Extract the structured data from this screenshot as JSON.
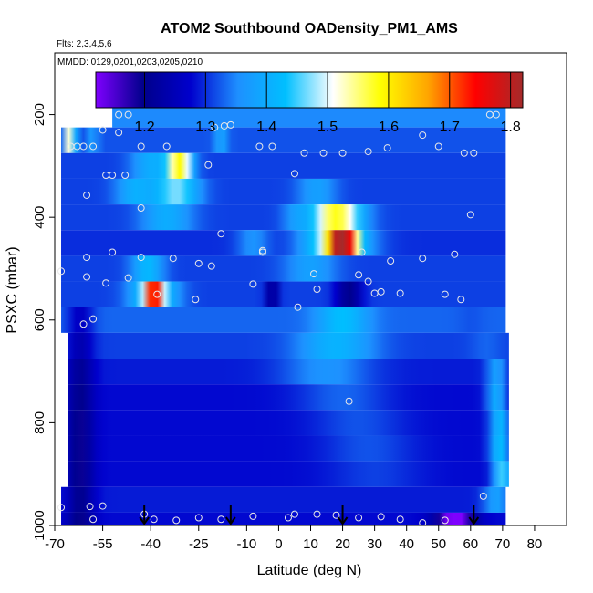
{
  "chart_data": {
    "type": "heatmap",
    "title": "ATOM2 Southbound OADensity_PM1_AMS",
    "flights_label": "Flts: 2,3,4,5,6",
    "dates_label": "MMDD: 0129,0201,0203,0205,0210",
    "xlabel": "Latitude (deg N)",
    "ylabel": "PSXC (mbar)",
    "xlim": [
      -70,
      90
    ],
    "ylim": [
      1000,
      80
    ],
    "y_reversed": true,
    "xticks": [
      -70,
      -55,
      -40,
      -25,
      -10,
      0,
      10,
      20,
      30,
      40,
      50,
      60,
      70,
      80
    ],
    "xticklabels": [
      "-70",
      "-55",
      "-40",
      "-25",
      "-10",
      "0",
      "10",
      "20",
      "30",
      "40",
      "50",
      "60",
      "70",
      "80"
    ],
    "yticks": [
      200,
      400,
      600,
      800,
      1000
    ],
    "yticklabels": [
      "200",
      "400",
      "600",
      "800",
      "1000"
    ],
    "colorbar": {
      "range": [
        1.12,
        1.82
      ],
      "ticks": [
        1.2,
        1.3,
        1.4,
        1.5,
        1.6,
        1.7,
        1.8
      ],
      "ticklabels": [
        "1.2",
        "1.3",
        "1.4",
        "1.5",
        "1.6",
        "1.7",
        "1.8"
      ],
      "stops": [
        "#7f00ff",
        "#00008b",
        "#0000cd",
        "#1e90ff",
        "#00bfff",
        "#ffffff",
        "#ffff00",
        "#ffa500",
        "#ff0000",
        "#a52a2a"
      ]
    },
    "bands": [
      {
        "p": [
          175,
          225
        ],
        "x": [
          -52,
          71
        ],
        "base": 1.35,
        "hot": []
      },
      {
        "p": [
          225,
          275
        ],
        "x": [
          -68,
          71
        ],
        "base": 1.32,
        "hot": [
          {
            "lat": -66,
            "w": 1.2,
            "v": 1.53
          },
          {
            "lat": -64,
            "w": 1.0,
            "v": 1.42
          },
          {
            "lat": -58,
            "w": 1.5,
            "v": 1.38
          },
          {
            "lat": -18,
            "w": 2,
            "v": 1.39
          }
        ]
      },
      {
        "p": [
          275,
          325
        ],
        "x": [
          -68,
          71
        ],
        "base": 1.31,
        "hot": [
          {
            "lat": -31,
            "w": 4,
            "v": 1.58
          },
          {
            "lat": -40,
            "w": 6,
            "v": 1.4
          }
        ]
      },
      {
        "p": [
          325,
          375
        ],
        "x": [
          -68,
          71
        ],
        "base": 1.31,
        "hot": [
          {
            "lat": -32,
            "w": 7,
            "v": 1.47
          },
          {
            "lat": -45,
            "w": 6,
            "v": 1.4
          },
          {
            "lat": 12,
            "w": 6,
            "v": 1.38
          }
        ]
      },
      {
        "p": [
          375,
          425
        ],
        "x": [
          -68,
          71
        ],
        "base": 1.31,
        "hot": [
          {
            "lat": 18,
            "w": 8,
            "v": 1.58
          },
          {
            "lat": -35,
            "w": 8,
            "v": 1.4
          },
          {
            "lat": 5,
            "w": 4,
            "v": 1.36
          }
        ]
      },
      {
        "p": [
          425,
          475
        ],
        "x": [
          -68,
          71
        ],
        "base": 1.3,
        "hot": [
          {
            "lat": 20,
            "w": 4,
            "v": 1.69
          },
          {
            "lat": 18,
            "w": 10,
            "v": 1.52
          },
          {
            "lat": -8,
            "w": 5,
            "v": 1.36
          }
        ]
      },
      {
        "p": [
          475,
          525
        ],
        "x": [
          -68,
          71
        ],
        "base": 1.31,
        "hot": [
          {
            "lat": -41,
            "w": 5,
            "v": 1.42
          },
          {
            "lat": 10,
            "w": 8,
            "v": 1.38
          }
        ]
      },
      {
        "p": [
          525,
          575
        ],
        "x": [
          -68,
          71
        ],
        "base": 1.31,
        "hot": [
          {
            "lat": -39,
            "w": 2.5,
            "v": 1.62
          },
          {
            "lat": -39,
            "w": 7,
            "v": 1.48
          },
          {
            "lat": -2,
            "w": 2,
            "v": 1.2
          },
          {
            "lat": 22,
            "w": 4,
            "v": 1.2
          }
        ]
      },
      {
        "p": [
          575,
          625
        ],
        "x": [
          -68,
          71
        ],
        "base": 1.33,
        "hot": [
          {
            "lat": -62,
            "w": 4,
            "v": 1.26
          },
          {
            "lat": 20,
            "w": 8,
            "v": 1.43
          },
          {
            "lat": 60,
            "w": 4,
            "v": 1.32
          }
        ]
      },
      {
        "p": [
          625,
          675
        ],
        "x": [
          -66,
          72
        ],
        "base": 1.31,
        "hot": [
          {
            "lat": -62,
            "w": 4,
            "v": 1.24
          },
          {
            "lat": 18,
            "w": 12,
            "v": 1.41
          },
          {
            "lat": 65,
            "w": 5,
            "v": 1.33
          }
        ]
      },
      {
        "p": [
          675,
          725
        ],
        "x": [
          -66,
          72
        ],
        "base": 1.29,
        "hot": [
          {
            "lat": -62,
            "w": 4,
            "v": 1.21
          },
          {
            "lat": 15,
            "w": 14,
            "v": 1.36
          },
          {
            "lat": 68,
            "w": 3,
            "v": 1.38
          }
        ]
      },
      {
        "p": [
          725,
          775
        ],
        "x": [
          -66,
          72
        ],
        "base": 1.28,
        "hot": [
          {
            "lat": -62,
            "w": 4,
            "v": 1.2
          },
          {
            "lat": 20,
            "w": 14,
            "v": 1.33
          },
          {
            "lat": 68,
            "w": 3,
            "v": 1.4
          }
        ]
      },
      {
        "p": [
          775,
          825
        ],
        "x": [
          -66,
          72
        ],
        "base": 1.28,
        "hot": [
          {
            "lat": -62,
            "w": 4,
            "v": 1.19
          },
          {
            "lat": 25,
            "w": 14,
            "v": 1.32
          },
          {
            "lat": 69,
            "w": 3,
            "v": 1.42
          }
        ]
      },
      {
        "p": [
          825,
          875
        ],
        "x": [
          -66,
          72
        ],
        "base": 1.28,
        "hot": [
          {
            "lat": -62,
            "w": 4,
            "v": 1.19
          },
          {
            "lat": 28,
            "w": 14,
            "v": 1.32
          },
          {
            "lat": 69,
            "w": 3,
            "v": 1.43
          }
        ]
      },
      {
        "p": [
          875,
          925
        ],
        "x": [
          -66,
          72
        ],
        "base": 1.28,
        "hot": [
          {
            "lat": -62,
            "w": 4,
            "v": 1.19
          },
          {
            "lat": 30,
            "w": 14,
            "v": 1.31
          },
          {
            "lat": 70,
            "w": 3,
            "v": 1.45
          }
        ]
      },
      {
        "p": [
          925,
          975
        ],
        "x": [
          -68,
          71
        ],
        "base": 1.29,
        "hot": [
          {
            "lat": -62,
            "w": 4,
            "v": 1.2
          },
          {
            "lat": 68,
            "w": 4,
            "v": 1.38
          }
        ]
      },
      {
        "p": [
          975,
          1000
        ],
        "x": [
          -68,
          71
        ],
        "base": 1.28,
        "hot": [
          {
            "lat": -62,
            "w": 4,
            "v": 1.19
          },
          {
            "lat": 55,
            "w": 6,
            "v": 1.1
          }
        ]
      }
    ],
    "samples": [
      {
        "lat": -50,
        "p": 200
      },
      {
        "lat": -47,
        "p": 200
      },
      {
        "lat": 66,
        "p": 200
      },
      {
        "lat": 68,
        "p": 200
      },
      {
        "lat": -55,
        "p": 230
      },
      {
        "lat": -50,
        "p": 235
      },
      {
        "lat": -20,
        "p": 225
      },
      {
        "lat": -17,
        "p": 222
      },
      {
        "lat": -15,
        "p": 220
      },
      {
        "lat": 45,
        "p": 240
      },
      {
        "lat": -65,
        "p": 262
      },
      {
        "lat": -63,
        "p": 262
      },
      {
        "lat": -61,
        "p": 262
      },
      {
        "lat": -58,
        "p": 262
      },
      {
        "lat": -43,
        "p": 262
      },
      {
        "lat": -35,
        "p": 262
      },
      {
        "lat": -6,
        "p": 262
      },
      {
        "lat": -2,
        "p": 262
      },
      {
        "lat": 8,
        "p": 275
      },
      {
        "lat": 14,
        "p": 275
      },
      {
        "lat": 20,
        "p": 275
      },
      {
        "lat": 28,
        "p": 272
      },
      {
        "lat": 34,
        "p": 265
      },
      {
        "lat": 50,
        "p": 262
      },
      {
        "lat": 58,
        "p": 275
      },
      {
        "lat": 61,
        "p": 275
      },
      {
        "lat": -54,
        "p": 318
      },
      {
        "lat": -52,
        "p": 318
      },
      {
        "lat": -48,
        "p": 318
      },
      {
        "lat": -22,
        "p": 298
      },
      {
        "lat": 5,
        "p": 315
      },
      {
        "lat": -60,
        "p": 357
      },
      {
        "lat": -43,
        "p": 382
      },
      {
        "lat": 60,
        "p": 395
      },
      {
        "lat": -5,
        "p": 465
      },
      {
        "lat": -5,
        "p": 468
      },
      {
        "lat": -60,
        "p": 478
      },
      {
        "lat": -52,
        "p": 468
      },
      {
        "lat": -43,
        "p": 478
      },
      {
        "lat": -33,
        "p": 480
      },
      {
        "lat": -18,
        "p": 432
      },
      {
        "lat": 26,
        "p": 468
      },
      {
        "lat": 35,
        "p": 485
      },
      {
        "lat": 45,
        "p": 480
      },
      {
        "lat": 55,
        "p": 472
      },
      {
        "lat": -60,
        "p": 516
      },
      {
        "lat": -54,
        "p": 528
      },
      {
        "lat": -47,
        "p": 518
      },
      {
        "lat": -25,
        "p": 490
      },
      {
        "lat": -21,
        "p": 495
      },
      {
        "lat": 11,
        "p": 510
      },
      {
        "lat": 25,
        "p": 512
      },
      {
        "lat": 28,
        "p": 525
      },
      {
        "lat": -8,
        "p": 530
      },
      {
        "lat": 12,
        "p": 540
      },
      {
        "lat": 32,
        "p": 545
      },
      {
        "lat": 38,
        "p": 548
      },
      {
        "lat": 52,
        "p": 550
      },
      {
        "lat": 57,
        "p": 560
      },
      {
        "lat": -68,
        "p": 505
      },
      {
        "lat": -38,
        "p": 550
      },
      {
        "lat": -26,
        "p": 560
      },
      {
        "lat": 6,
        "p": 575
      },
      {
        "lat": 30,
        "p": 548
      },
      {
        "lat": -58,
        "p": 598
      },
      {
        "lat": -61,
        "p": 608
      },
      {
        "lat": 22,
        "p": 758
      },
      {
        "lat": -68,
        "p": 965
      },
      {
        "lat": -59,
        "p": 963
      },
      {
        "lat": -55,
        "p": 962
      },
      {
        "lat": 64,
        "p": 943
      },
      {
        "lat": -58,
        "p": 988
      },
      {
        "lat": -42,
        "p": 978
      },
      {
        "lat": -39,
        "p": 988
      },
      {
        "lat": -32,
        "p": 990
      },
      {
        "lat": -25,
        "p": 985
      },
      {
        "lat": -18,
        "p": 988
      },
      {
        "lat": -8,
        "p": 982
      },
      {
        "lat": 3,
        "p": 985
      },
      {
        "lat": 5,
        "p": 978
      },
      {
        "lat": 12,
        "p": 978
      },
      {
        "lat": 18,
        "p": 980
      },
      {
        "lat": 25,
        "p": 985
      },
      {
        "lat": 32,
        "p": 983
      },
      {
        "lat": 38,
        "p": 988
      },
      {
        "lat": 45,
        "p": 995
      },
      {
        "lat": 52,
        "p": 990
      }
    ],
    "arrows": [
      -42,
      -15,
      20,
      61
    ]
  }
}
